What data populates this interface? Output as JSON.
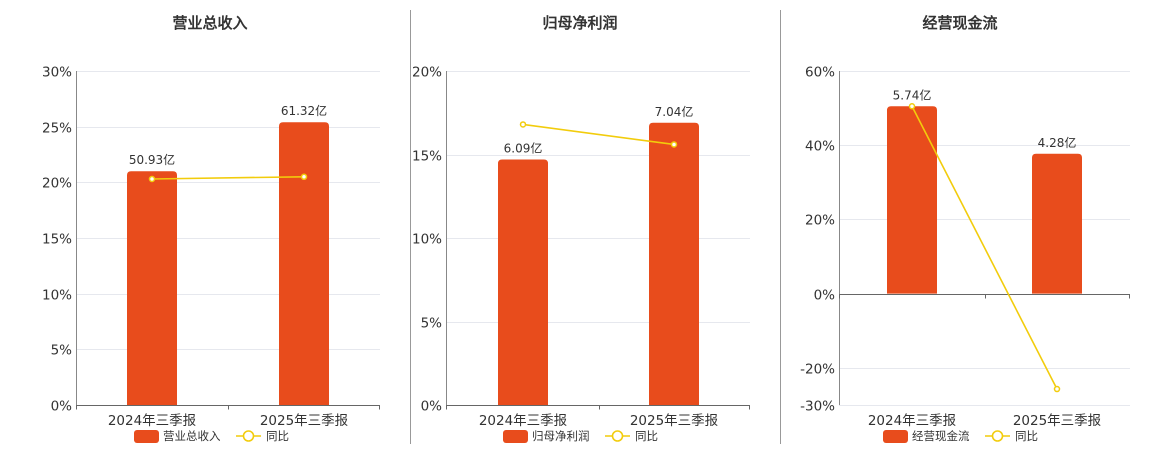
{
  "colors": {
    "bar": "#e84c1c",
    "line": "#f2cc0c",
    "grid": "#e6e8ee",
    "axis": "#666666",
    "divider": "#999999"
  },
  "chart_data": [
    {
      "type": "bar",
      "title": "营业总收入",
      "categories": [
        "2024年三季报",
        "2025年三季报"
      ],
      "bar_labels": [
        "50.93亿",
        "61.32亿"
      ],
      "series": [
        {
          "name": "营业总收入",
          "type": "bar",
          "values": [
            21.0,
            25.4
          ]
        },
        {
          "name": "同比",
          "type": "line",
          "values": [
            20.3,
            20.5
          ]
        }
      ],
      "ylim": [
        0,
        30
      ],
      "yticks": [
        0,
        5,
        10,
        15,
        20,
        25,
        30
      ],
      "ytick_labels": [
        "0%",
        "5%",
        "10%",
        "15%",
        "20%",
        "25%",
        "30%"
      ],
      "grid": true,
      "legend": "bottom"
    },
    {
      "type": "bar",
      "title": "归母净利润",
      "categories": [
        "2024年三季报",
        "2025年三季报"
      ],
      "bar_labels": [
        "6.09亿",
        "7.04亿"
      ],
      "series": [
        {
          "name": "归母净利润",
          "type": "bar",
          "values": [
            14.7,
            16.9
          ]
        },
        {
          "name": "同比",
          "type": "line",
          "values": [
            16.8,
            15.6
          ]
        }
      ],
      "ylim": [
        0,
        20
      ],
      "yticks": [
        0,
        5,
        10,
        15,
        20
      ],
      "ytick_labels": [
        "0%",
        "5%",
        "10%",
        "15%",
        "20%"
      ],
      "grid": true,
      "legend": "bottom"
    },
    {
      "type": "bar",
      "title": "经营现金流",
      "categories": [
        "2024年三季报",
        "2025年三季报"
      ],
      "bar_labels": [
        "5.74亿",
        "4.28亿"
      ],
      "series": [
        {
          "name": "经营现金流",
          "type": "bar",
          "values": [
            50.5,
            37.7
          ]
        },
        {
          "name": "同比",
          "type": "line",
          "values": [
            50.5,
            -25.7
          ]
        }
      ],
      "ylim": [
        -30,
        60
      ],
      "yticks": [
        -30,
        -20,
        0,
        20,
        40,
        60
      ],
      "ytick_labels": [
        "-30%",
        "-20%",
        "0%",
        "20%",
        "40%",
        "60%"
      ],
      "grid": true,
      "legend": "bottom"
    }
  ]
}
